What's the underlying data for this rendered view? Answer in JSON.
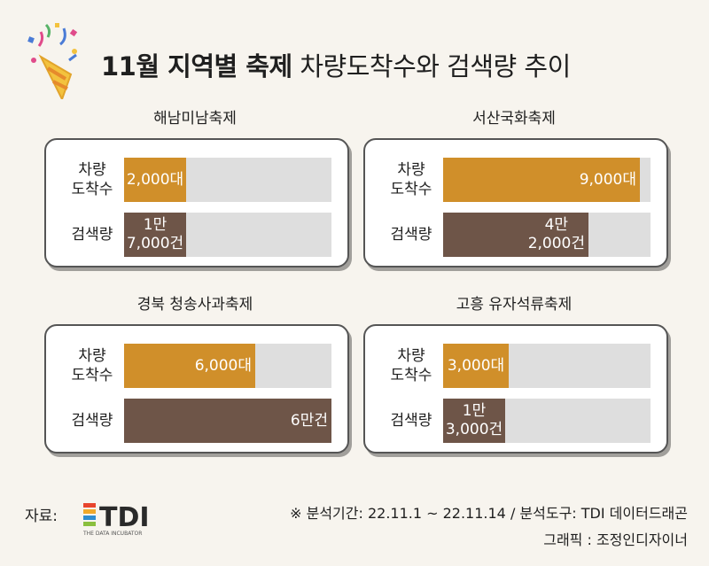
{
  "title": {
    "bold": "11월 지역별 축제",
    "rest": " 차량도착수와 검색량 추이"
  },
  "row_labels": {
    "cars": "차량\n도착수",
    "search": "검색량"
  },
  "colors": {
    "cars": "#d08f2a",
    "search": "#6e5548",
    "track": "#dedede"
  },
  "chart_data": {
    "type": "bar",
    "series": [
      {
        "name": "차량 도착수",
        "values": [
          2000,
          9000,
          6000,
          3000
        ]
      },
      {
        "name": "검색량",
        "values": [
          17000,
          42000,
          60000,
          13000
        ]
      }
    ],
    "categories": [
      "해남미남축제",
      "서산국화축제",
      "경북 청송사과축제",
      "고흥 유자석류축제"
    ],
    "panels": [
      {
        "name": "해남미남축제",
        "cars": 2000,
        "cars_label": "2,000대",
        "search": 17000,
        "search_label": "1만\n7,000건"
      },
      {
        "name": "서산국화축제",
        "cars": 9000,
        "cars_label": "9,000대",
        "search": 42000,
        "search_label": "4만\n2,000건"
      },
      {
        "name": "경북 청송사과축제",
        "cars": 6000,
        "cars_label": "6,000대",
        "search": 60000,
        "search_label": "6만건"
      },
      {
        "name": "고흥 유자석류축제",
        "cars": 3000,
        "cars_label": "3,000대",
        "search": 13000,
        "search_label": "1만\n3,000건"
      }
    ],
    "cars_max": 9500,
    "search_max": 60000
  },
  "footer": {
    "source_label": "자료:",
    "logo_text": "TDI",
    "logo_sub": "THE DATA INCUBATOR",
    "period": "※ 분석기간:  22.11.1 ~ 22.11.14 / 분석도구: TDI 데이터드래곤",
    "graphic": "그래픽 : 조정인디자이너"
  }
}
